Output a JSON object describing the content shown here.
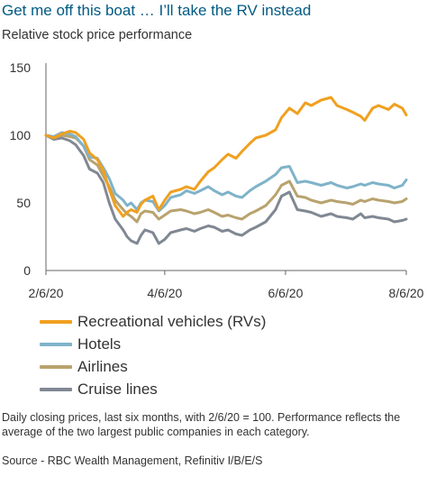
{
  "title": "Get me off this boat … I’ll take the RV instead",
  "subtitle": "Relative stock price performance",
  "note": "Daily closing prices, last six months, with 2/6/20 = 100. Performance reflects the average of the two largest public companies in each category.",
  "source": "Source - RBC Wealth Management, Refinitiv I/B/E/S",
  "chart_data": {
    "type": "line",
    "title": "Get me off this boat … I’ll take the RV instead",
    "subtitle": "Relative stock price performance",
    "xlabel": "",
    "ylabel": "",
    "ylim": [
      0,
      150
    ],
    "yticks": [
      0,
      50,
      100,
      150
    ],
    "xlim": [
      "2/6/20",
      "8/6/20"
    ],
    "xticks": [
      "2/6/20",
      "4/6/20",
      "6/6/20",
      "8/6/20"
    ],
    "grid": false,
    "legend_position": "bottom",
    "series": [
      {
        "name": "Recreational vehicles (RVs)",
        "color": "#f0a020",
        "points": [
          [
            "2/6/20",
            100
          ],
          [
            "2/10/20",
            98
          ],
          [
            "2/14/20",
            101
          ],
          [
            "2/18/20",
            103
          ],
          [
            "2/21/20",
            102
          ],
          [
            "2/25/20",
            97
          ],
          [
            "2/28/20",
            87
          ],
          [
            "3/3/20",
            82
          ],
          [
            "3/6/20",
            74
          ],
          [
            "3/9/20",
            60
          ],
          [
            "3/12/20",
            48
          ],
          [
            "3/16/20",
            40
          ],
          [
            "3/18/20",
            43
          ],
          [
            "3/20/20",
            45
          ],
          [
            "3/23/20",
            43
          ],
          [
            "3/25/20",
            49
          ],
          [
            "3/27/20",
            52
          ],
          [
            "3/31/20",
            55
          ],
          [
            "4/3/20",
            45
          ],
          [
            "4/6/20",
            52
          ],
          [
            "4/9/20",
            58
          ],
          [
            "4/14/20",
            60
          ],
          [
            "4/17/20",
            62
          ],
          [
            "4/21/20",
            60
          ],
          [
            "4/24/20",
            66
          ],
          [
            "4/28/20",
            73
          ],
          [
            "5/1/20",
            76
          ],
          [
            "5/5/20",
            82
          ],
          [
            "5/8/20",
            86
          ],
          [
            "5/12/20",
            83
          ],
          [
            "5/15/20",
            88
          ],
          [
            "5/19/20",
            94
          ],
          [
            "5/22/20",
            98
          ],
          [
            "5/27/20",
            100
          ],
          [
            "6/1/20",
            104
          ],
          [
            "6/4/20",
            113
          ],
          [
            "6/8/20",
            120
          ],
          [
            "6/12/20",
            116
          ],
          [
            "6/16/20",
            124
          ],
          [
            "6/19/20",
            122
          ],
          [
            "6/24/20",
            126
          ],
          [
            "6/29/20",
            128
          ],
          [
            "7/2/20",
            122
          ],
          [
            "7/7/20",
            119
          ],
          [
            "7/10/20",
            117
          ],
          [
            "7/14/20",
            114
          ],
          [
            "7/16/20",
            111
          ],
          [
            "7/20/20",
            120
          ],
          [
            "7/23/20",
            122
          ],
          [
            "7/28/20",
            119
          ],
          [
            "7/31/20",
            123
          ],
          [
            "8/4/20",
            120
          ],
          [
            "8/6/20",
            115
          ]
        ]
      },
      {
        "name": "Hotels",
        "color": "#7fb3c9",
        "points": [
          [
            "2/6/20",
            100
          ],
          [
            "2/10/20",
            99
          ],
          [
            "2/14/20",
            102
          ],
          [
            "2/18/20",
            101
          ],
          [
            "2/21/20",
            99
          ],
          [
            "2/25/20",
            92
          ],
          [
            "2/28/20",
            84
          ],
          [
            "3/3/20",
            83
          ],
          [
            "3/6/20",
            76
          ],
          [
            "3/9/20",
            68
          ],
          [
            "3/12/20",
            57
          ],
          [
            "3/16/20",
            52
          ],
          [
            "3/18/20",
            48
          ],
          [
            "3/20/20",
            50
          ],
          [
            "3/23/20",
            45
          ],
          [
            "3/25/20",
            50
          ],
          [
            "3/27/20",
            52
          ],
          [
            "3/31/20",
            51
          ],
          [
            "4/3/20",
            44
          ],
          [
            "4/6/20",
            48
          ],
          [
            "4/9/20",
            54
          ],
          [
            "4/14/20",
            56
          ],
          [
            "4/17/20",
            59
          ],
          [
            "4/21/20",
            57
          ],
          [
            "4/24/20",
            59
          ],
          [
            "4/28/20",
            62
          ],
          [
            "5/1/20",
            59
          ],
          [
            "5/5/20",
            56
          ],
          [
            "5/8/20",
            58
          ],
          [
            "5/12/20",
            55
          ],
          [
            "5/15/20",
            54
          ],
          [
            "5/19/20",
            59
          ],
          [
            "5/22/20",
            62
          ],
          [
            "5/27/20",
            66
          ],
          [
            "6/1/20",
            71
          ],
          [
            "6/4/20",
            76
          ],
          [
            "6/8/20",
            77
          ],
          [
            "6/12/20",
            65
          ],
          [
            "6/16/20",
            66
          ],
          [
            "6/19/20",
            65
          ],
          [
            "6/24/20",
            63
          ],
          [
            "6/29/20",
            65
          ],
          [
            "7/2/20",
            63
          ],
          [
            "7/7/20",
            61
          ],
          [
            "7/10/20",
            62
          ],
          [
            "7/14/20",
            64
          ],
          [
            "7/16/20",
            63
          ],
          [
            "7/20/20",
            65
          ],
          [
            "7/23/20",
            64
          ],
          [
            "7/28/20",
            63
          ],
          [
            "7/31/20",
            61
          ],
          [
            "8/4/20",
            63
          ],
          [
            "8/6/20",
            67
          ]
        ]
      },
      {
        "name": "Airlines",
        "color": "#b8a36e",
        "points": [
          [
            "2/6/20",
            100
          ],
          [
            "2/10/20",
            98
          ],
          [
            "2/14/20",
            100
          ],
          [
            "2/18/20",
            99
          ],
          [
            "2/21/20",
            98
          ],
          [
            "2/25/20",
            92
          ],
          [
            "2/28/20",
            82
          ],
          [
            "3/3/20",
            78
          ],
          [
            "3/6/20",
            70
          ],
          [
            "3/9/20",
            62
          ],
          [
            "3/12/20",
            52
          ],
          [
            "3/16/20",
            45
          ],
          [
            "3/18/20",
            42
          ],
          [
            "3/20/20",
            40
          ],
          [
            "3/23/20",
            36
          ],
          [
            "3/25/20",
            42
          ],
          [
            "3/27/20",
            44
          ],
          [
            "3/31/20",
            43
          ],
          [
            "4/3/20",
            38
          ],
          [
            "4/6/20",
            41
          ],
          [
            "4/9/20",
            44
          ],
          [
            "4/14/20",
            45
          ],
          [
            "4/17/20",
            44
          ],
          [
            "4/21/20",
            42
          ],
          [
            "4/24/20",
            43
          ],
          [
            "4/28/20",
            45
          ],
          [
            "5/1/20",
            43
          ],
          [
            "5/5/20",
            40
          ],
          [
            "5/8/20",
            41
          ],
          [
            "5/12/20",
            39
          ],
          [
            "5/15/20",
            38
          ],
          [
            "5/19/20",
            42
          ],
          [
            "5/22/20",
            44
          ],
          [
            "5/27/20",
            48
          ],
          [
            "6/1/20",
            56
          ],
          [
            "6/4/20",
            63
          ],
          [
            "6/8/20",
            66
          ],
          [
            "6/12/20",
            55
          ],
          [
            "6/16/20",
            54
          ],
          [
            "6/19/20",
            52
          ],
          [
            "6/24/20",
            50
          ],
          [
            "6/29/20",
            52
          ],
          [
            "7/2/20",
            51
          ],
          [
            "7/7/20",
            50
          ],
          [
            "7/10/20",
            49
          ],
          [
            "7/14/20",
            52
          ],
          [
            "7/16/20",
            51
          ],
          [
            "7/20/20",
            53
          ],
          [
            "7/23/20",
            52
          ],
          [
            "7/28/20",
            51
          ],
          [
            "7/31/20",
            50
          ],
          [
            "8/4/20",
            51
          ],
          [
            "8/6/20",
            53
          ]
        ]
      },
      {
        "name": "Cruise lines",
        "color": "#808893",
        "points": [
          [
            "2/6/20",
            100
          ],
          [
            "2/10/20",
            97
          ],
          [
            "2/14/20",
            98
          ],
          [
            "2/18/20",
            96
          ],
          [
            "2/21/20",
            93
          ],
          [
            "2/25/20",
            85
          ],
          [
            "2/28/20",
            75
          ],
          [
            "3/3/20",
            72
          ],
          [
            "3/6/20",
            65
          ],
          [
            "3/9/20",
            50
          ],
          [
            "3/12/20",
            38
          ],
          [
            "3/16/20",
            30
          ],
          [
            "3/18/20",
            25
          ],
          [
            "3/20/20",
            22
          ],
          [
            "3/23/20",
            20
          ],
          [
            "3/25/20",
            26
          ],
          [
            "3/27/20",
            30
          ],
          [
            "3/31/20",
            28
          ],
          [
            "4/3/20",
            20
          ],
          [
            "4/6/20",
            23
          ],
          [
            "4/9/20",
            28
          ],
          [
            "4/14/20",
            30
          ],
          [
            "4/17/20",
            31
          ],
          [
            "4/21/20",
            29
          ],
          [
            "4/24/20",
            31
          ],
          [
            "4/28/20",
            33
          ],
          [
            "5/1/20",
            32
          ],
          [
            "5/5/20",
            29
          ],
          [
            "5/8/20",
            30
          ],
          [
            "5/12/20",
            27
          ],
          [
            "5/15/20",
            26
          ],
          [
            "5/19/20",
            30
          ],
          [
            "5/22/20",
            32
          ],
          [
            "5/27/20",
            36
          ],
          [
            "6/1/20",
            45
          ],
          [
            "6/4/20",
            55
          ],
          [
            "6/8/20",
            58
          ],
          [
            "6/12/20",
            45
          ],
          [
            "6/16/20",
            44
          ],
          [
            "6/19/20",
            43
          ],
          [
            "6/24/20",
            40
          ],
          [
            "6/29/20",
            42
          ],
          [
            "7/2/20",
            40
          ],
          [
            "7/7/20",
            39
          ],
          [
            "7/10/20",
            38
          ],
          [
            "7/14/20",
            42
          ],
          [
            "7/16/20",
            39
          ],
          [
            "7/20/20",
            40
          ],
          [
            "7/23/20",
            39
          ],
          [
            "7/28/20",
            38
          ],
          [
            "7/31/20",
            36
          ],
          [
            "8/4/20",
            37
          ],
          [
            "8/6/20",
            38
          ]
        ]
      }
    ]
  }
}
